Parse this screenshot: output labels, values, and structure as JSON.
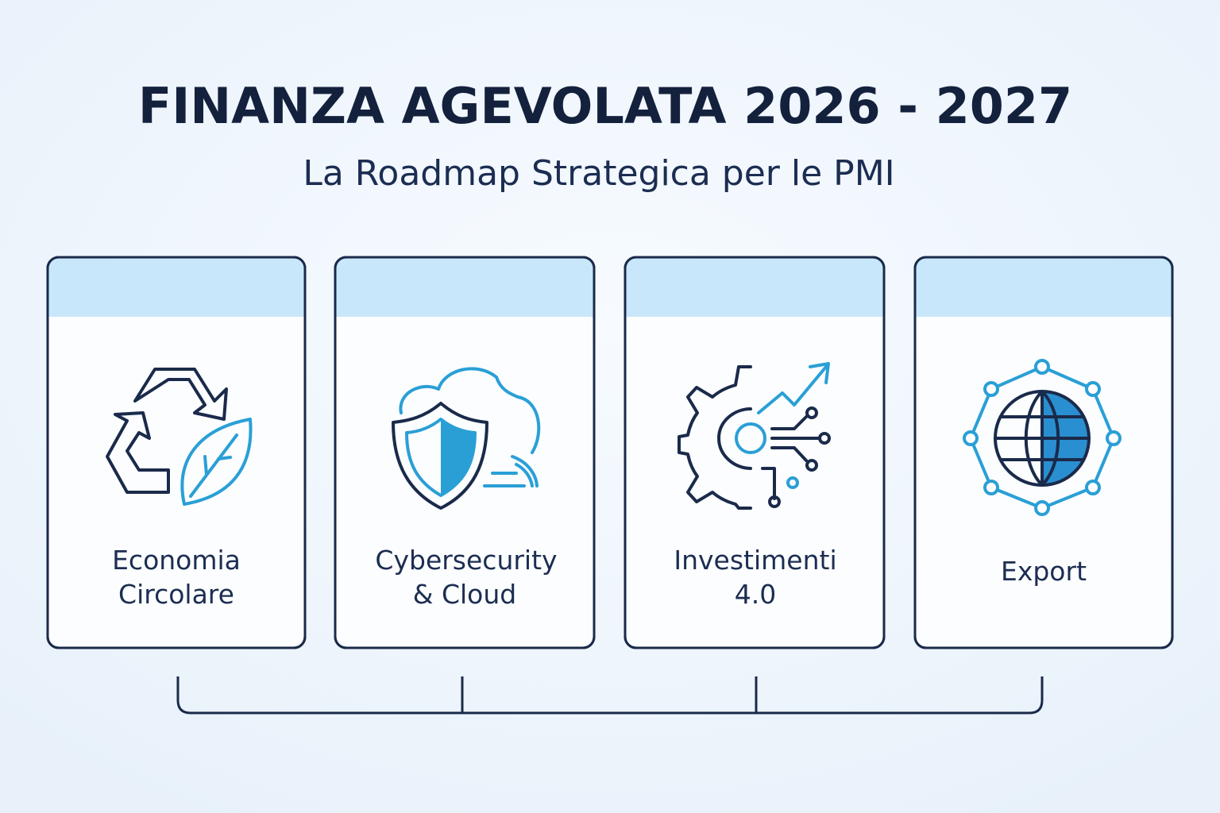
{
  "header": {
    "title": "FINANZA AGEVOLATA 2026 - 2027",
    "subtitle": "La Roadmap Strategica per le PMI"
  },
  "cards": [
    {
      "label": [
        "Economia",
        "Circolare"
      ]
    },
    {
      "label": [
        "Cybersecurity",
        "& Cloud"
      ]
    },
    {
      "label": [
        "Investimenti",
        "4.0"
      ]
    },
    {
      "label": [
        "Export"
      ]
    }
  ]
}
